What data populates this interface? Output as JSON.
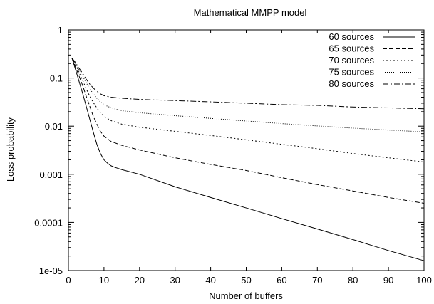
{
  "chart_data": {
    "type": "line",
    "title": "Mathematical MMPP model",
    "xlabel": "Number of buffers",
    "ylabel": "Loss probability",
    "xlim": [
      0,
      100
    ],
    "ylim": [
      1e-05,
      1
    ],
    "yscale": "log",
    "grid": false,
    "legend_position": "top-right",
    "x_ticks": [
      0,
      10,
      20,
      30,
      40,
      50,
      60,
      70,
      80,
      90,
      100
    ],
    "x_tick_labels": [
      "0",
      "10",
      "20",
      "30",
      "40",
      "50",
      "60",
      "70",
      "80",
      "90",
      "100"
    ],
    "y_ticks": [
      1,
      0.1,
      0.01,
      0.001,
      0.0001,
      1e-05
    ],
    "y_tick_labels": [
      "1",
      "0.1",
      "0.01",
      "0.001",
      "0.0001",
      "1e-05"
    ],
    "series": [
      {
        "name": "60 sources",
        "dash": "solid",
        "x": [
          1,
          2,
          3,
          4,
          5,
          6,
          7,
          8,
          9,
          10,
          11,
          12,
          13,
          15,
          20,
          30,
          40,
          50,
          60,
          70,
          80,
          90,
          100
        ],
        "y": [
          0.26,
          0.15,
          0.085,
          0.048,
          0.026,
          0.014,
          0.0075,
          0.0042,
          0.0027,
          0.002,
          0.0017,
          0.0015,
          0.0014,
          0.00125,
          0.001,
          0.00055,
          0.00033,
          0.0002,
          0.00012,
          7.3e-05,
          4.4e-05,
          2.6e-05,
          1.6e-05
        ]
      },
      {
        "name": "65 sources",
        "dash": "dashed",
        "x": [
          1,
          2,
          3,
          4,
          5,
          6,
          7,
          8,
          9,
          10,
          12,
          15,
          20,
          30,
          40,
          50,
          60,
          70,
          80,
          90,
          100
        ],
        "y": [
          0.26,
          0.17,
          0.11,
          0.07,
          0.042,
          0.026,
          0.016,
          0.011,
          0.0078,
          0.0062,
          0.0048,
          0.004,
          0.0032,
          0.0022,
          0.0016,
          0.0012,
          0.00085,
          0.00061,
          0.00045,
          0.00033,
          0.00025
        ]
      },
      {
        "name": "70 sources",
        "dash": "dotted",
        "x": [
          1,
          2,
          3,
          4,
          5,
          6,
          7,
          8,
          9,
          10,
          12,
          15,
          20,
          30,
          40,
          50,
          60,
          70,
          80,
          90,
          100
        ],
        "y": [
          0.26,
          0.19,
          0.13,
          0.09,
          0.06,
          0.042,
          0.031,
          0.024,
          0.019,
          0.016,
          0.013,
          0.011,
          0.0095,
          0.0078,
          0.0064,
          0.0052,
          0.0042,
          0.0034,
          0.0027,
          0.0022,
          0.0018
        ]
      },
      {
        "name": "75 sources",
        "dash": "fine-dotted",
        "x": [
          1,
          2,
          3,
          4,
          5,
          6,
          7,
          8,
          9,
          10,
          12,
          15,
          20,
          30,
          40,
          50,
          60,
          70,
          80,
          90,
          100
        ],
        "y": [
          0.26,
          0.2,
          0.15,
          0.11,
          0.08,
          0.06,
          0.047,
          0.038,
          0.032,
          0.028,
          0.024,
          0.021,
          0.019,
          0.0165,
          0.0145,
          0.0128,
          0.0113,
          0.0101,
          0.0091,
          0.0083,
          0.0076
        ]
      },
      {
        "name": "80 sources",
        "dash": "dash-dot",
        "x": [
          1,
          2,
          3,
          4,
          5,
          6,
          7,
          8,
          9,
          10,
          12,
          15,
          20,
          30,
          40,
          50,
          60,
          70,
          80,
          90,
          100
        ],
        "y": [
          0.26,
          0.21,
          0.16,
          0.125,
          0.095,
          0.075,
          0.062,
          0.053,
          0.047,
          0.043,
          0.04,
          0.038,
          0.036,
          0.034,
          0.032,
          0.03,
          0.028,
          0.027,
          0.025,
          0.024,
          0.023
        ]
      }
    ]
  }
}
